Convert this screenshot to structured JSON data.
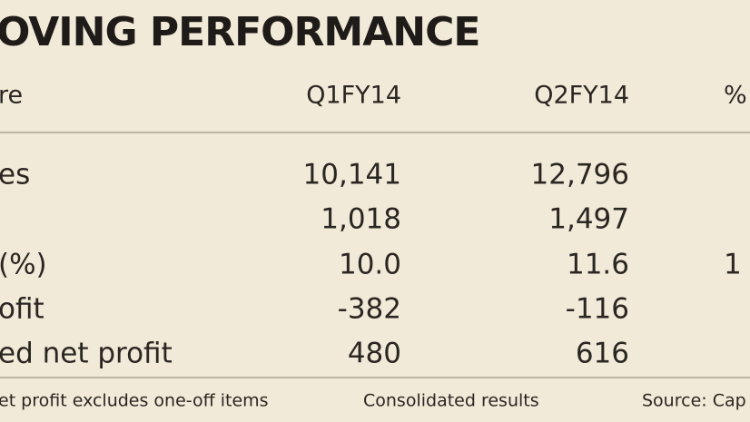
{
  "title": "OVING PERFORMANCE",
  "table": {
    "header": [
      "re",
      "Q1FY14",
      "Q2FY14",
      "%"
    ],
    "rows": [
      [
        "es",
        "10,141",
        "12,796",
        null
      ],
      [
        null,
        "1,018",
        "1,497",
        null
      ],
      [
        "(%)",
        "10.0",
        "11.6",
        "1"
      ],
      [
        "ofit",
        "-382",
        "-116",
        null
      ],
      [
        "ed net profit",
        "480",
        "616",
        null
      ]
    ]
  },
  "footer": [
    "et profit excludes one-off items",
    "Consolidated results",
    "Source: Cap"
  ]
}
